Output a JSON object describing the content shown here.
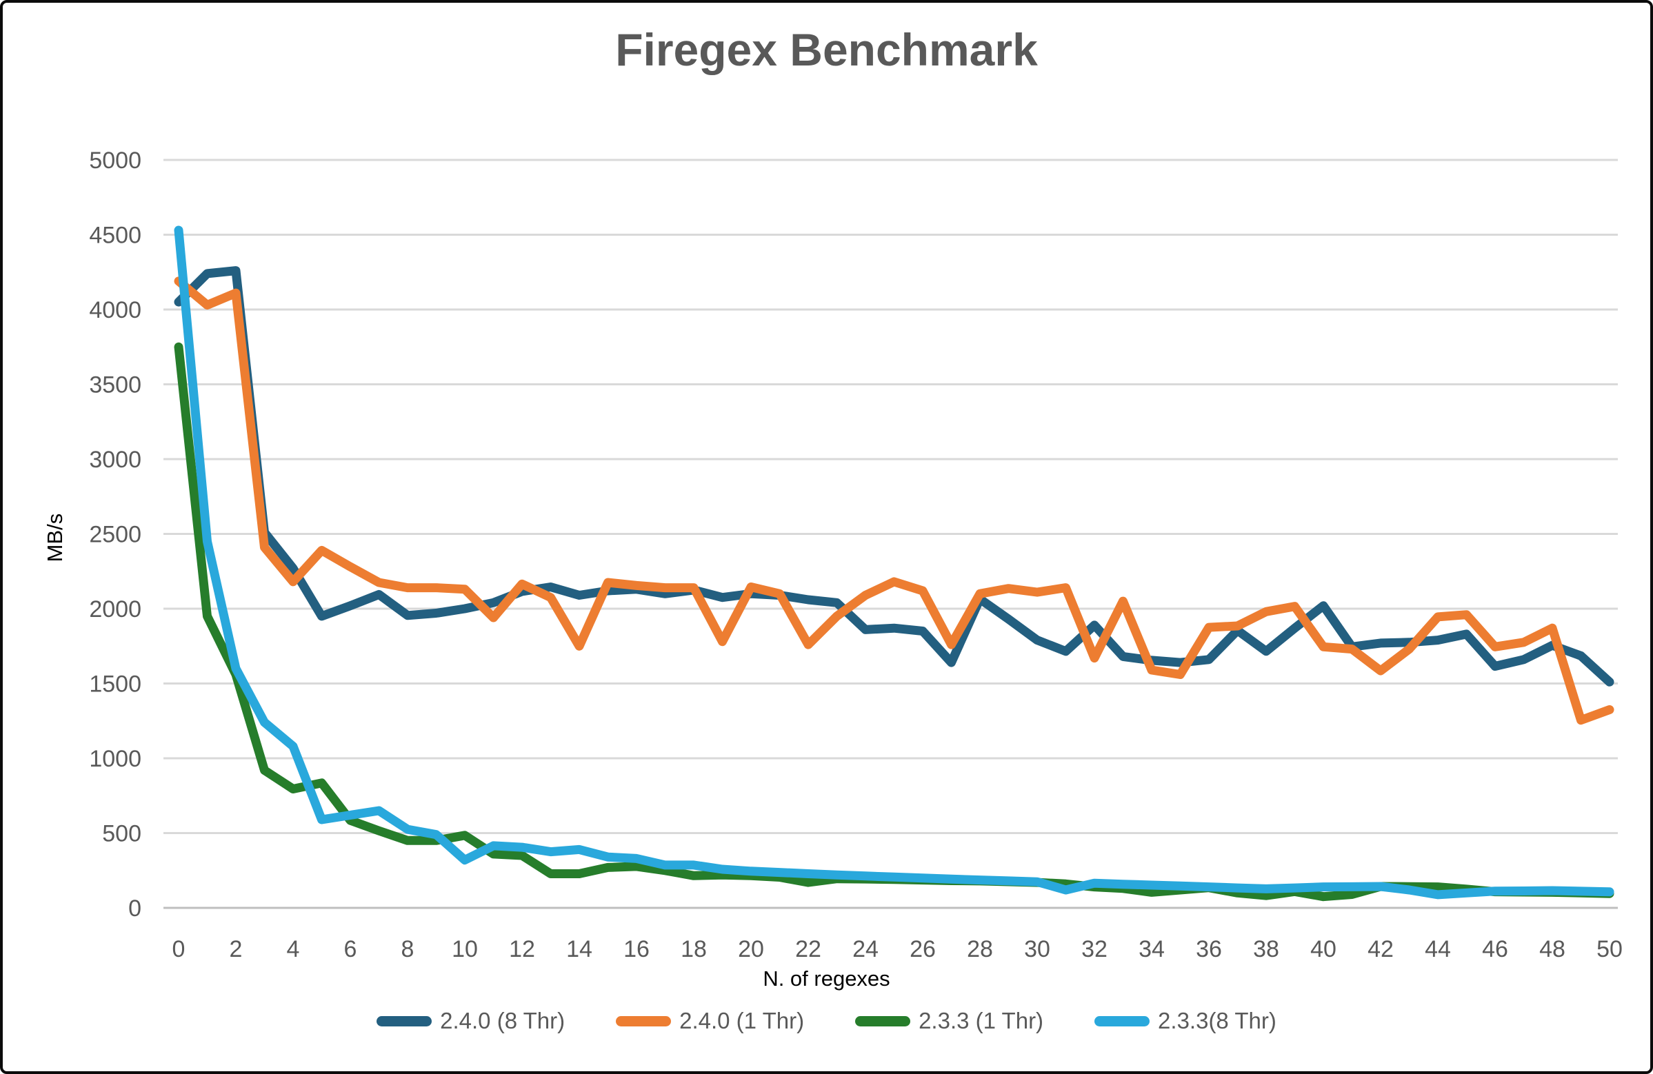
{
  "colors": {
    "title_text": "#595959",
    "tick_text": "#595959",
    "axis_title_text": "#000000",
    "gridline": "#D9D9D9",
    "zero_line": "#BFBFBF"
  },
  "chart_data": {
    "type": "line",
    "title": "Firegex Benchmark",
    "xlabel": "N. of regexes",
    "ylabel": "MB/s",
    "xlim": [
      0,
      50
    ],
    "ylim": [
      0,
      5000
    ],
    "grid": "horizontal",
    "legend_position": "bottom",
    "x_ticks": [
      0,
      2,
      4,
      6,
      8,
      10,
      12,
      14,
      16,
      18,
      20,
      22,
      24,
      26,
      28,
      30,
      32,
      34,
      36,
      38,
      40,
      42,
      44,
      46,
      48,
      50
    ],
    "y_ticks": [
      0,
      500,
      1000,
      1500,
      2000,
      2500,
      3000,
      3500,
      4000,
      4500,
      5000
    ],
    "x": [
      0,
      1,
      2,
      3,
      4,
      5,
      6,
      7,
      8,
      9,
      10,
      11,
      12,
      13,
      14,
      15,
      16,
      17,
      18,
      19,
      20,
      21,
      22,
      23,
      24,
      25,
      26,
      27,
      28,
      29,
      30,
      31,
      32,
      33,
      34,
      35,
      36,
      37,
      38,
      39,
      40,
      41,
      42,
      43,
      44,
      45,
      46,
      47,
      48,
      49,
      50
    ],
    "series": [
      {
        "name": "2.4.0 (8 Thr)",
        "color": "#235F80",
        "values": [
          4050,
          4240,
          4260,
          2510,
          2270,
          1950,
          2020,
          2095,
          1955,
          1970,
          2000,
          2040,
          2115,
          2145,
          2090,
          2120,
          2130,
          2100,
          2125,
          2075,
          2100,
          2090,
          2060,
          2040,
          1860,
          1870,
          1850,
          1640,
          2065,
          1930,
          1790,
          1715,
          1890,
          1680,
          1655,
          1640,
          1660,
          1855,
          1715,
          1870,
          2020,
          1745,
          1770,
          1775,
          1790,
          1830,
          1615,
          1660,
          1755,
          1685,
          1510
        ]
      },
      {
        "name": "2.4.0 (1 Thr)",
        "color": "#ED7D31",
        "values": [
          4190,
          4030,
          4110,
          2410,
          2180,
          2390,
          2280,
          2175,
          2140,
          2140,
          2130,
          1940,
          2165,
          2075,
          1750,
          2175,
          2155,
          2140,
          2140,
          1780,
          2145,
          2100,
          1760,
          1950,
          2090,
          2180,
          2120,
          1760,
          2100,
          2135,
          2110,
          2140,
          1670,
          2050,
          1590,
          1560,
          1875,
          1885,
          1980,
          2015,
          1745,
          1730,
          1585,
          1730,
          1945,
          1960,
          1745,
          1775,
          1870,
          1255,
          1325
        ]
      },
      {
        "name": "2.3.3 (1 Thr)",
        "color": "#267D2B",
        "values": [
          3750,
          1950,
          1560,
          920,
          795,
          835,
          585,
          515,
          450,
          450,
          485,
          360,
          350,
          228,
          228,
          270,
          277,
          250,
          215,
          220,
          215,
          205,
          170,
          195,
          193,
          190,
          186,
          182,
          180,
          175,
          170,
          160,
          140,
          130,
          104,
          120,
          135,
          100,
          82,
          109,
          75,
          90,
          143,
          142,
          140,
          125,
          108,
          106,
          104,
          100,
          96
        ]
      },
      {
        "name": "2.3.3(8 Thr)",
        "color": "#29A8DC",
        "values": [
          4530,
          2450,
          1600,
          1240,
          1080,
          590,
          620,
          650,
          525,
          490,
          320,
          415,
          405,
          375,
          390,
          340,
          330,
          286,
          286,
          258,
          245,
          237,
          228,
          220,
          213,
          206,
          199,
          192,
          186,
          180,
          174,
          120,
          165,
          158,
          152,
          146,
          140,
          133,
          127,
          133,
          140,
          141,
          143,
          120,
          88,
          100,
          112,
          113,
          115,
          111,
          107
        ]
      }
    ]
  }
}
